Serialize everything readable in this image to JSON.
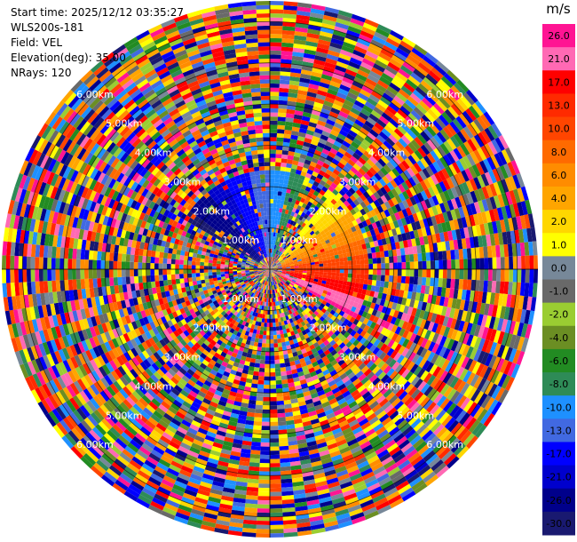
{
  "info": {
    "start_time": "Start time: 2025/12/12 03:35:27",
    "instrument": "WLS200s-181",
    "field": "Field: VEL",
    "elevation": "Elevation(deg): 35.00",
    "nrays": "NRays: 120"
  },
  "colorbar": {
    "unit": "m/s",
    "ticks": [
      "26.0",
      "21.0",
      "17.0",
      "13.0",
      "10.0",
      "8.0",
      "6.0",
      "4.0",
      "2.0",
      "1.0",
      "0.0",
      "-1.0",
      "-2.0",
      "-4.0",
      "-6.0",
      "-8.0",
      "-10.0",
      "-13.0",
      "-17.0",
      "-21.0",
      "-26.0",
      "-30.0"
    ],
    "colors": [
      "#ff1493",
      "#ff69b4",
      "#ff0000",
      "#ff2a00",
      "#ff4500",
      "#ff6a00",
      "#ff8c00",
      "#ffa500",
      "#ffd700",
      "#ffff00",
      "#778899",
      "#696969",
      "#9acd32",
      "#6b8e23",
      "#228b22",
      "#2e8b57",
      "#1e90ff",
      "#4169e1",
      "#0000ff",
      "#0000cd",
      "#00008b",
      "#191970"
    ]
  },
  "chart_data": {
    "type": "heatmap",
    "projection": "polar-ppi",
    "field": "VEL",
    "unit": "m/s",
    "nrays": 120,
    "range_rings_km": [
      1,
      2,
      3,
      4,
      5,
      6
    ],
    "range_labels": [
      "1.00km",
      "2.00km",
      "3.00km",
      "4.00km",
      "5.00km",
      "6.00km"
    ],
    "vmin": -30.0,
    "vmax": 26.0,
    "inner_structure": {
      "description": "coherent near-range wind pattern",
      "positive_sector_deg": [
        40,
        120
      ],
      "negative_sector_deg": [
        300,
        360
      ],
      "coherent_range_km": [
        0.3,
        2.4
      ]
    }
  }
}
